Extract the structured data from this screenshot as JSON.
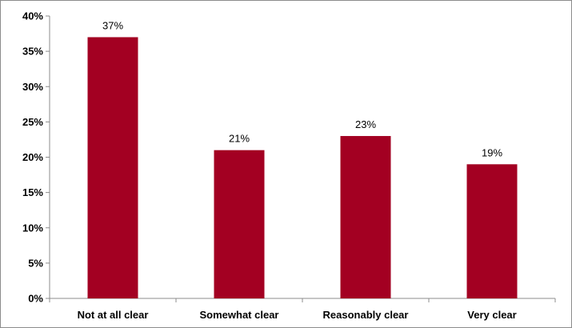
{
  "chart_data": {
    "type": "bar",
    "title": "",
    "xlabel": "",
    "ylabel": "",
    "categories": [
      "Not at all clear",
      "Somewhat clear",
      "Reasonably clear",
      "Very clear"
    ],
    "values": [
      37,
      21,
      23,
      19
    ],
    "data_labels": [
      "37%",
      "21%",
      "23%",
      "19%"
    ],
    "y_ticks": [
      0,
      5,
      10,
      15,
      20,
      25,
      30,
      35,
      40
    ],
    "y_tick_labels": [
      "0%",
      "5%",
      "10%",
      "15%",
      "20%",
      "25%",
      "30%",
      "35%",
      "40%"
    ],
    "ylim": [
      0,
      40
    ],
    "grid": false,
    "legend": "none",
    "bar_color": "#a30022",
    "axis_color": "#8c8c8c"
  }
}
